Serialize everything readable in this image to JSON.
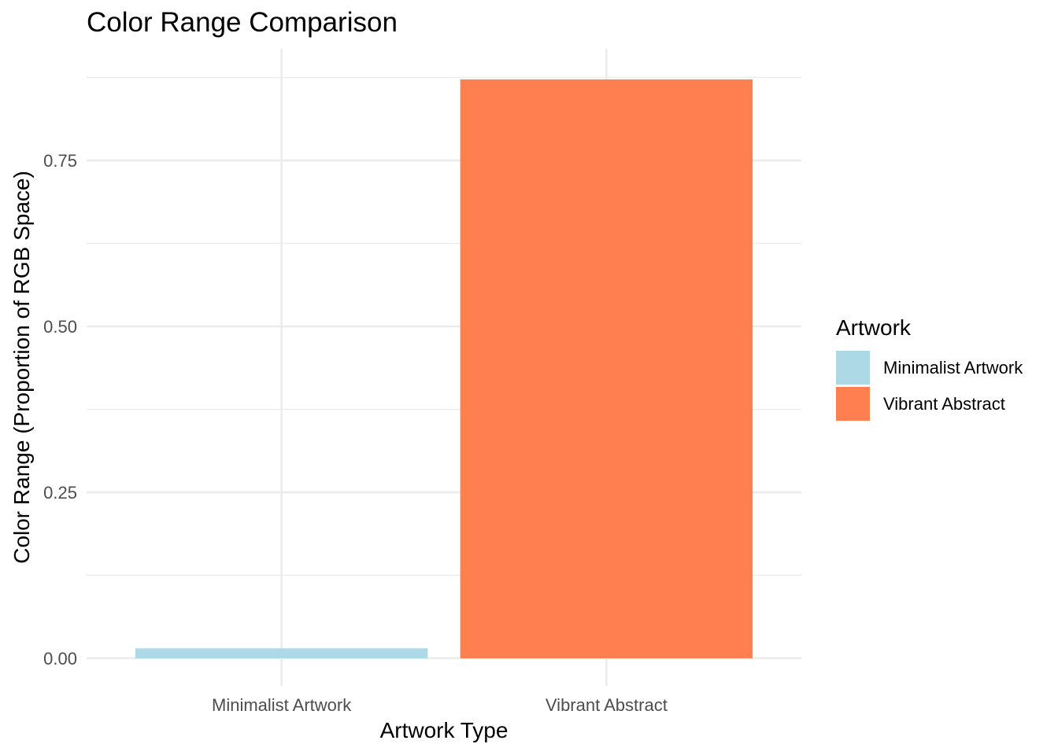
{
  "chart_data": {
    "type": "bar",
    "title": "Color Range Comparison",
    "xlabel": "Artwork Type",
    "ylabel": "Color Range (Proportion of RGB Space)",
    "categories": [
      "Minimalist Artwork",
      "Vibrant Abstract"
    ],
    "values": [
      0.015,
      0.872
    ],
    "colors": [
      "#add8e6",
      "#ff7f50"
    ],
    "ylim": [
      0,
      0.9
    ],
    "yticks": [
      0.0,
      0.25,
      0.5,
      0.75
    ],
    "ytick_labels": [
      "0.00",
      "0.25",
      "0.50",
      "0.75"
    ],
    "grid": true,
    "legend": {
      "title": "Artwork",
      "position": "right",
      "entries": [
        "Minimalist Artwork",
        "Vibrant Abstract"
      ]
    }
  }
}
